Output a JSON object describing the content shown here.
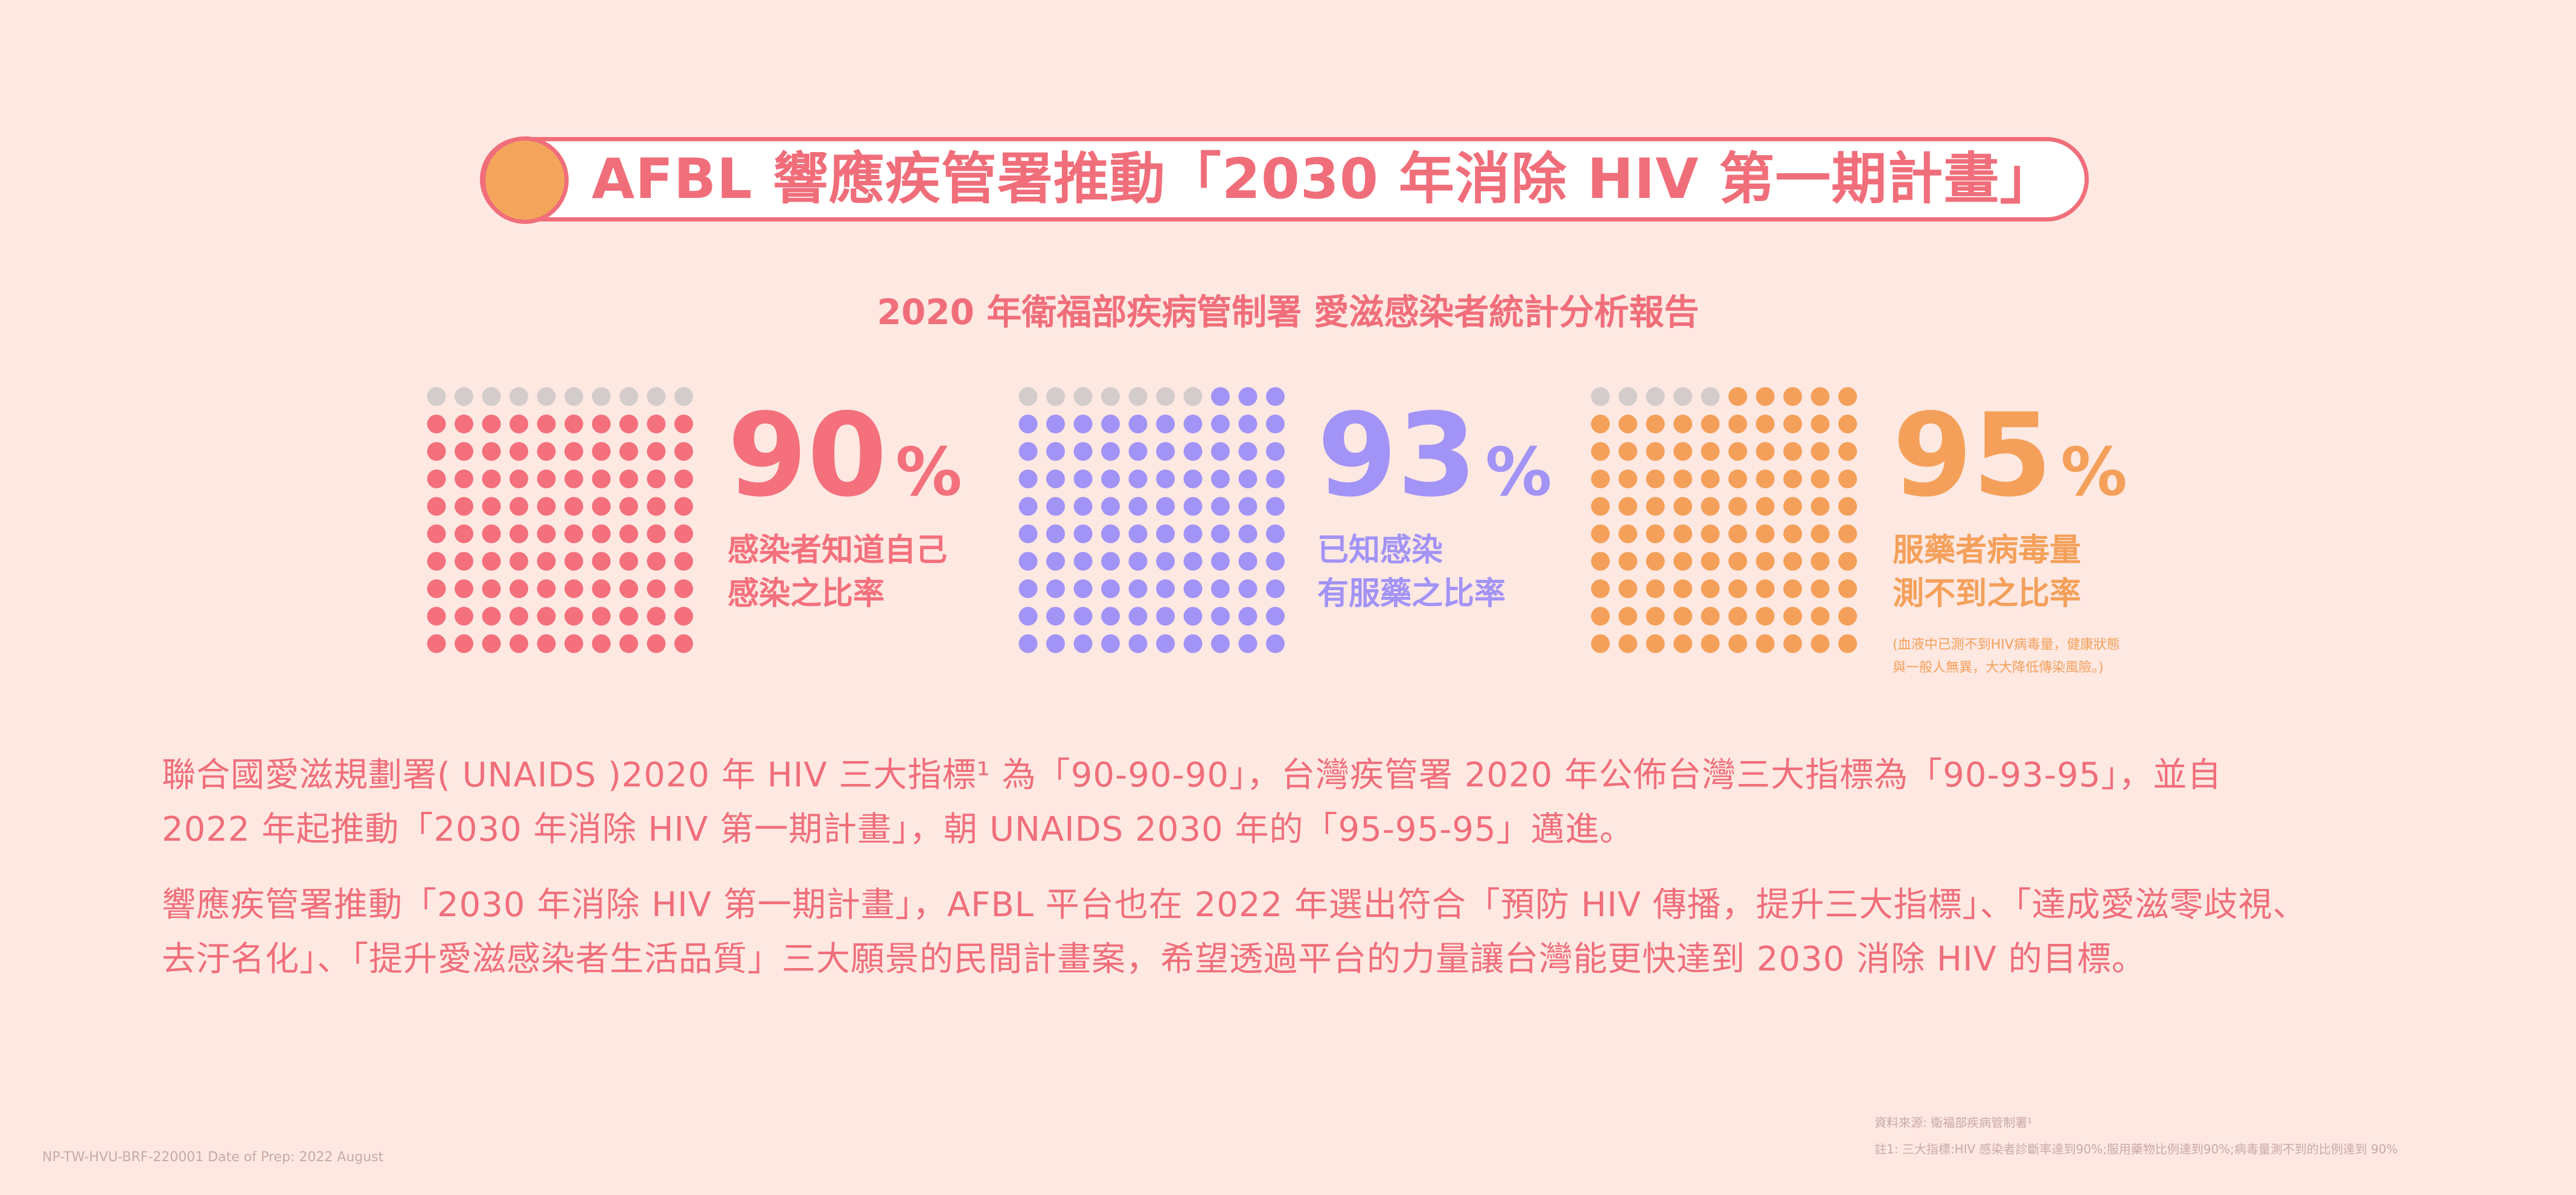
{
  "title": "AFBL 響應疾管署推動「2030 年消除 HIV 第一期計畫」",
  "subtitle": "2020 年衛福部疾病管制署 愛滋感染者統計分析報告",
  "stats": [
    {
      "value": "90",
      "unit": "%",
      "color": "#F3707C",
      "desc_line1": "感染者知道自己",
      "desc_line2": "感染之比率",
      "note_line1": "",
      "note_line2": ""
    },
    {
      "value": "93",
      "unit": "%",
      "color": "#A293F6",
      "desc_line1": "已知感染",
      "desc_line2": "有服藥之比率",
      "note_line1": "",
      "note_line2": ""
    },
    {
      "value": "95",
      "unit": "%",
      "color": "#F4A05A",
      "desc_line1": "服藥者病毒量",
      "desc_line2": "測不到之比率",
      "note_line1": "(血液中已測不到HIV病毒量，健康狀態",
      "note_line2": "與一般人無異，大大降低傳染風險。)"
    }
  ],
  "dot_grey_color": "#D3CCCB",
  "paragraph1": {
    "line1": "聯合國愛滋規劃署( UNAIDS )2020 年 HIV 三大指標¹ 為「90-90-90」，台灣疾管署 2020 年公佈台灣三大指標為「90-93-95」，並自",
    "line2": "2022 年起推動「2030 年消除 HIV 第一期計畫」，朝 UNAIDS 2030 年的「95-95-95」邁進。"
  },
  "paragraph2": {
    "line1": "響應疾管署推動「2030 年消除 HIV 第一期計畫」，AFBL 平台也在 2022 年選出符合「預防 HIV 傳播，提升三大指標」、「達成愛滋零歧視、",
    "line2": "去汙名化」、「提升愛滋感染者生活品質」三大願景的民間計畫案，希望透過平台的力量讓台灣能更快達到 2030 消除 HIV 的目標。"
  },
  "footer": {
    "code": "NP-TW-HVU-BRF-220001  Date of Prep: 2022 August",
    "source": "資料來源: 衛福部疾病管制署¹",
    "footnote": "註1: 三大指標:HIV 感染者診斷率達到90%;服用藥物比例達到90%;病毒量測不到的比例達到 90%"
  }
}
